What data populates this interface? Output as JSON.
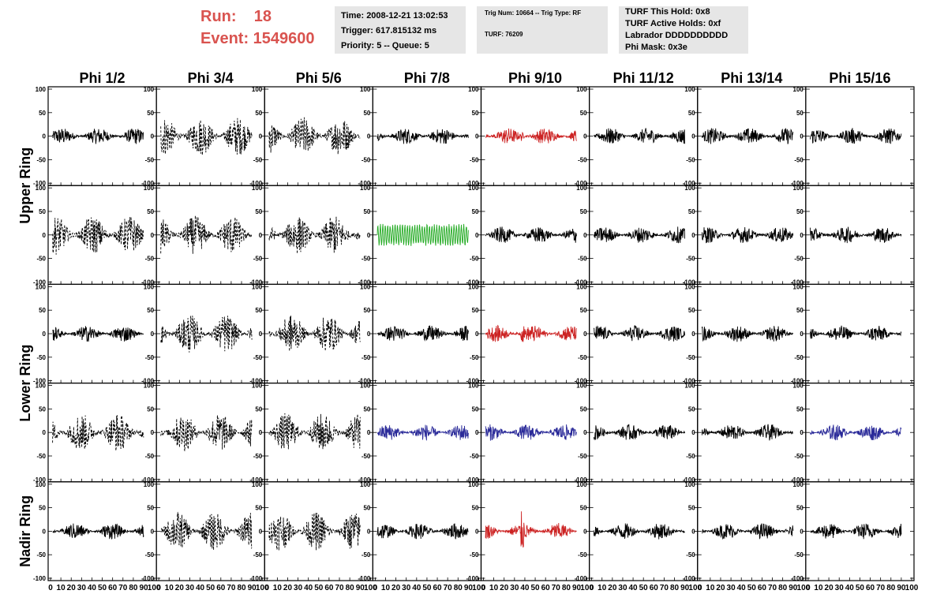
{
  "header": {
    "run_label": "Run:    18",
    "event_label": "Event: 1549600",
    "time_lines": [
      "Time: 2008-12-21 13:02:53",
      "Trigger: 617.815132 ms",
      "Priority: 5 -- Queue: 5"
    ],
    "trig_lines": [
      "Trig Num: 10664 -- Trig Type: RF",
      "TURF: 76209"
    ],
    "turf_lines": [
      "TURF This Hold: 0x8",
      "TURF Active Holds: 0xf",
      "Labrador DDDDDDDDDD",
      "Phi Mask: 0x3e"
    ]
  },
  "colors": {
    "header_text": "#d9534f",
    "info_bg": "#e6e6e6",
    "trace_red": "#cc2222",
    "trace_green": "#22aa22",
    "trace_blue": "#2a2a99",
    "trace_black": "#000000"
  },
  "chart_data": {
    "type": "line",
    "columns": [
      "Phi 1/2",
      "Phi 3/4",
      "Phi 5/6",
      "Phi 7/8",
      "Phi 9/10",
      "Phi 11/12",
      "Phi 13/14",
      "Phi 15/16"
    ],
    "row_groups": [
      "Upper Ring",
      "Lower Ring",
      "Nadir Ring"
    ],
    "panel_rows": 5,
    "xlim": [
      0,
      100
    ],
    "ylim": [
      -100,
      100
    ],
    "x_tick_labels": [
      "0",
      "10",
      "20",
      "30",
      "40",
      "50",
      "60",
      "70",
      "80",
      "90",
      "100"
    ],
    "y_tick_labels": [
      "100",
      "50",
      "0",
      "-50",
      "-100"
    ],
    "panel_styles": [
      [
        "solid",
        "dashed",
        "dashed",
        "solid",
        "solid",
        "solid",
        "solid",
        "solid"
      ],
      [
        "dashed",
        "dashed",
        "dashed",
        "solid",
        "solid",
        "solid",
        "solid",
        "solid"
      ],
      [
        "solid",
        "dashed",
        "dashed",
        "solid",
        "solid",
        "solid",
        "solid",
        "solid"
      ],
      [
        "dashed",
        "dashed",
        "dashed",
        "solid",
        "solid",
        "solid",
        "solid",
        "solid"
      ],
      [
        "solid",
        "dashed",
        "dashed",
        "solid",
        "solid",
        "solid",
        "solid",
        "solid"
      ]
    ],
    "panel_colors": [
      [
        "black",
        "black",
        "black",
        "black",
        "red",
        "black",
        "black",
        "black"
      ],
      [
        "black",
        "black",
        "black",
        "green",
        "black",
        "black",
        "black",
        "black"
      ],
      [
        "black",
        "black",
        "black",
        "black",
        "red",
        "black",
        "black",
        "black"
      ],
      [
        "black",
        "black",
        "black",
        "blue",
        "blue",
        "black",
        "black",
        "blue"
      ],
      [
        "black",
        "black",
        "black",
        "black",
        "red",
        "black",
        "black",
        "black"
      ]
    ]
  }
}
